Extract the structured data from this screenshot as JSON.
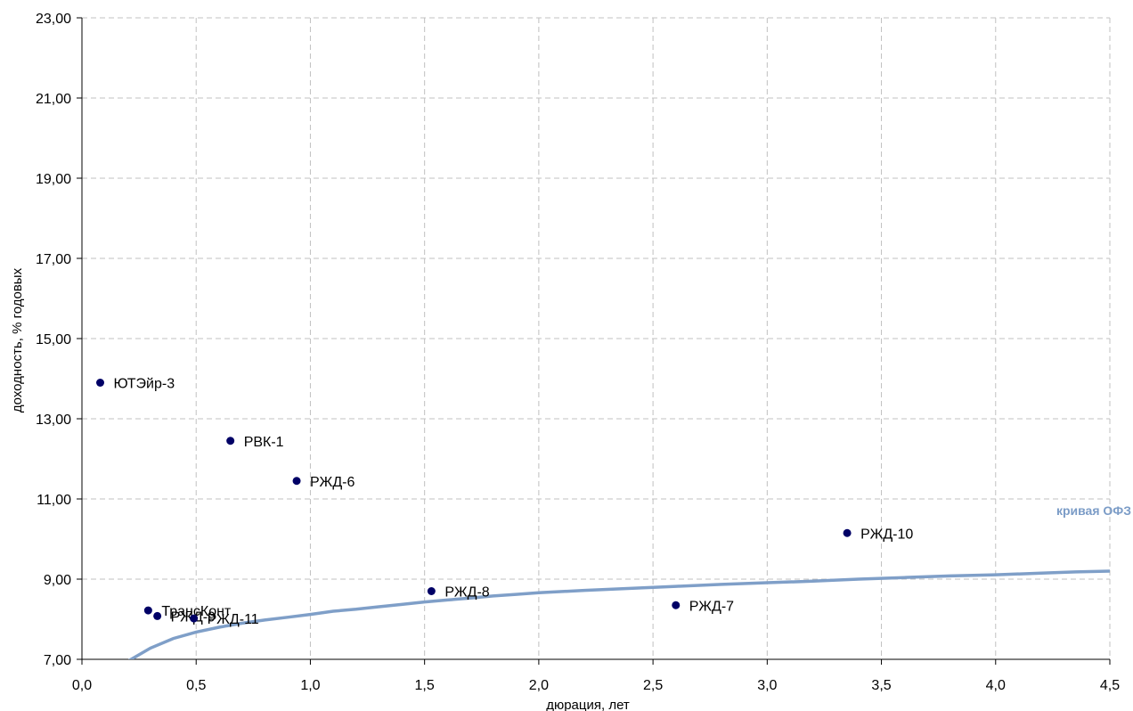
{
  "chart_data": {
    "type": "scatter",
    "xlabel": "дюрация, лет",
    "ylabel": "доходность, % годовых",
    "xlim": [
      0,
      4.5
    ],
    "ylim": [
      7,
      23
    ],
    "grid": true,
    "x_ticks": [
      "0,0",
      "0,5",
      "1,0",
      "1,5",
      "2,0",
      "2,5",
      "3,0",
      "3,5",
      "4,0",
      "4,5"
    ],
    "y_ticks": [
      "7,00",
      "9,00",
      "11,00",
      "13,00",
      "15,00",
      "17,00",
      "19,00",
      "21,00",
      "23,00"
    ],
    "points": [
      {
        "label": "ЮТЭйр-3",
        "x": 0.08,
        "y": 13.9
      },
      {
        "label": "РВК-1",
        "x": 0.65,
        "y": 12.45
      },
      {
        "label": "РЖД-6",
        "x": 0.94,
        "y": 11.45
      },
      {
        "label": "РЖД-10",
        "x": 3.35,
        "y": 10.15
      },
      {
        "label": "РЖД-8",
        "x": 1.53,
        "y": 8.7
      },
      {
        "label": "РЖД-7",
        "x": 2.6,
        "y": 8.35
      },
      {
        "label": "ТрансКонт",
        "x": 0.29,
        "y": 8.22
      },
      {
        "label": "РЖД-9",
        "x": 0.33,
        "y": 8.08
      },
      {
        "label": "РЖД-11",
        "x": 0.49,
        "y": 8.02
      }
    ],
    "curve": {
      "name": "кривая ОФЗ",
      "x": [
        0.2,
        0.3,
        0.4,
        0.5,
        0.6,
        0.7,
        0.8,
        0.9,
        1.0,
        1.1,
        1.2,
        1.3,
        1.4,
        1.5,
        1.6,
        1.7,
        1.8,
        1.9,
        2.0,
        2.2,
        2.4,
        2.6,
        2.8,
        3.0,
        3.2,
        3.4,
        3.6,
        3.8,
        4.0,
        4.2,
        4.35,
        4.5
      ],
      "y": [
        6.95,
        7.28,
        7.52,
        7.68,
        7.8,
        7.9,
        7.98,
        8.05,
        8.12,
        8.2,
        8.25,
        8.31,
        8.37,
        8.43,
        8.48,
        8.53,
        8.58,
        8.62,
        8.66,
        8.72,
        8.77,
        8.82,
        8.87,
        8.91,
        8.95,
        9.0,
        9.04,
        9.08,
        9.11,
        9.15,
        9.18,
        9.2
      ]
    },
    "colors": {
      "points": "#000066",
      "curve": "#7f9fc8",
      "curve_label": "#7b9cc7",
      "grid": "#c0c0c0"
    }
  }
}
